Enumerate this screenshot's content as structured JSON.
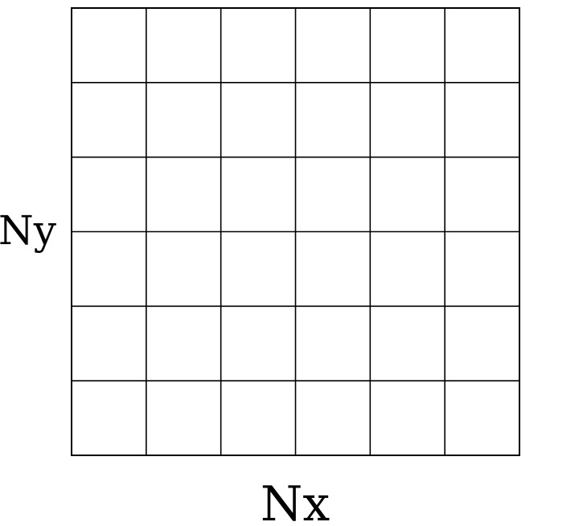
{
  "grid": {
    "columns": 6,
    "rows": 6,
    "line_color": "#000000",
    "background_color": "#ffffff"
  },
  "labels": {
    "x_axis": "Nx",
    "y_axis": "Ny"
  }
}
